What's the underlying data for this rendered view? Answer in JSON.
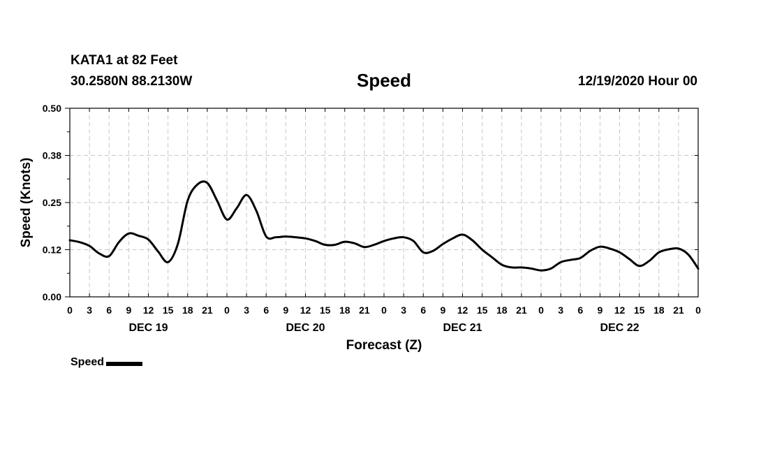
{
  "header": {
    "station": "KATA1 at 82 Feet",
    "coords": "30.2580N 88.2130W",
    "title": "Speed",
    "datetime": "12/19/2020 Hour 00"
  },
  "legend": {
    "label": "Speed"
  },
  "chart_data": {
    "type": "line",
    "title": "Speed",
    "xlabel": "Forecast (Z)",
    "ylabel": "Speed (Knots)",
    "ylim": [
      0,
      0.5
    ],
    "yticks": [
      "0.00",
      "0.12",
      "0.25",
      "0.38",
      "0.50"
    ],
    "xlim_hours": [
      0,
      96
    ],
    "xtick_labels": [
      "0",
      "3",
      "6",
      "9",
      "12",
      "15",
      "18",
      "21",
      "0",
      "3",
      "6",
      "9",
      "12",
      "15",
      "18",
      "21",
      "0",
      "3",
      "6",
      "9",
      "12",
      "15",
      "18",
      "21",
      "0",
      "3",
      "6",
      "9",
      "12",
      "15",
      "18",
      "21",
      "0"
    ],
    "day_labels": [
      {
        "label": "DEC 19",
        "hour": 12
      },
      {
        "label": "DEC 20",
        "hour": 36
      },
      {
        "label": "DEC 21",
        "hour": 60
      },
      {
        "label": "DEC 22",
        "hour": 84
      }
    ],
    "grid": true,
    "legend_position": "bottom-left",
    "series": [
      {
        "name": "Speed",
        "color": "#000000",
        "x": [
          0,
          1.5,
          3,
          4.5,
          6,
          7.5,
          9,
          10.5,
          12,
          13.5,
          15,
          16.5,
          18,
          19.5,
          21,
          22.5,
          24,
          25.5,
          27,
          28.5,
          30,
          31.5,
          33,
          34.5,
          36,
          37.5,
          39,
          40.5,
          42,
          43.5,
          45,
          46.5,
          48,
          49.5,
          51,
          52.5,
          54,
          55.5,
          57,
          58.5,
          60,
          61.5,
          63,
          64.5,
          66,
          67.5,
          69,
          70.5,
          72,
          73.5,
          75,
          76.5,
          78,
          79.5,
          81,
          82.5,
          84,
          85.5,
          87,
          88.5,
          90,
          91.5,
          93,
          94.5,
          96
        ],
        "values": [
          0.15,
          0.145,
          0.135,
          0.115,
          0.108,
          0.145,
          0.168,
          0.162,
          0.152,
          0.12,
          0.092,
          0.14,
          0.255,
          0.298,
          0.302,
          0.255,
          0.205,
          0.235,
          0.27,
          0.228,
          0.16,
          0.158,
          0.16,
          0.158,
          0.155,
          0.148,
          0.138,
          0.138,
          0.146,
          0.142,
          0.132,
          0.138,
          0.148,
          0.155,
          0.158,
          0.148,
          0.118,
          0.122,
          0.14,
          0.155,
          0.165,
          0.15,
          0.125,
          0.105,
          0.085,
          0.078,
          0.078,
          0.075,
          0.07,
          0.075,
          0.092,
          0.098,
          0.103,
          0.122,
          0.133,
          0.128,
          0.118,
          0.1,
          0.082,
          0.095,
          0.118,
          0.126,
          0.128,
          0.112,
          0.075
        ]
      }
    ]
  }
}
